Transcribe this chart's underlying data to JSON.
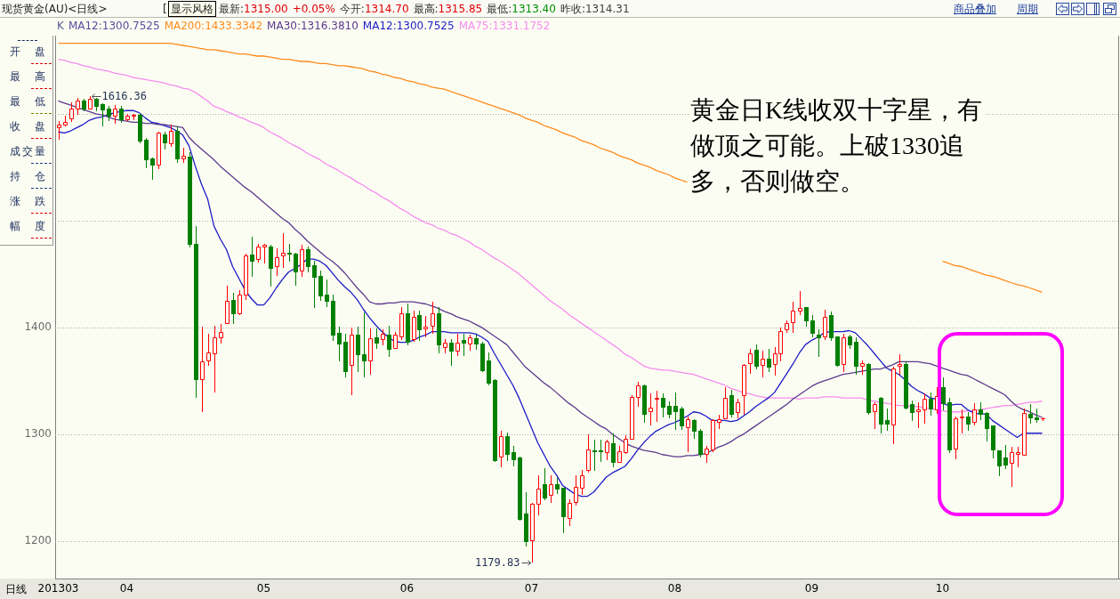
{
  "chart_data": {
    "type": "candlestick",
    "title": "现货黄金(AU)<日线>",
    "categories": [
      "201303",
      null,
      null,
      null,
      null,
      null,
      null,
      null,
      null,
      null,
      null,
      "04",
      null,
      null,
      null,
      null,
      null,
      null,
      null,
      null,
      null,
      null,
      null,
      null,
      null,
      null,
      null,
      null,
      null,
      null,
      null,
      null,
      null,
      "05",
      null,
      null,
      null,
      null,
      null,
      null,
      null,
      null,
      null,
      null,
      null,
      null,
      null,
      null,
      null,
      null,
      null,
      null,
      null,
      null,
      null,
      null,
      "06",
      null,
      null,
      null,
      null,
      null,
      null,
      null,
      null,
      null,
      null,
      null,
      null,
      null,
      null,
      null,
      null,
      null,
      null,
      null,
      "07",
      null,
      null,
      null,
      null,
      null,
      null,
      null,
      null,
      null,
      null,
      null,
      null,
      null,
      null,
      null,
      null,
      null,
      null,
      null,
      null,
      null,
      null,
      "08",
      null,
      null,
      null,
      null,
      null,
      null,
      null,
      null,
      null,
      null,
      null,
      null,
      null,
      null,
      null,
      null,
      null,
      null,
      null,
      null,
      null,
      "09",
      null,
      null,
      null,
      null,
      null,
      null,
      null,
      null,
      null,
      null,
      null,
      null,
      null,
      null,
      null,
      null,
      null,
      null,
      null,
      null,
      "10",
      null,
      null,
      null,
      null,
      null,
      null,
      null,
      null,
      null,
      null,
      null,
      null,
      null,
      null,
      null,
      null
    ],
    "ohlc": [
      [
        1587,
        1593,
        1576,
        1590
      ],
      [
        1590,
        1598,
        1588,
        1592
      ],
      [
        1596,
        1611,
        1592,
        1605
      ],
      [
        1605,
        1615,
        1599,
        1612
      ],
      [
        1612,
        1614,
        1603,
        1605
      ],
      [
        1605,
        1616.36,
        1604,
        1614
      ],
      [
        1614,
        1615,
        1603,
        1607
      ],
      [
        1609,
        1610,
        1589,
        1604
      ],
      [
        1605,
        1607,
        1594,
        1598
      ],
      [
        1598,
        1608,
        1591,
        1605
      ],
      [
        1605,
        1607,
        1592,
        1595
      ],
      [
        1595,
        1600,
        1593,
        1598
      ],
      [
        1598,
        1600,
        1594,
        1599
      ],
      [
        1599,
        1601,
        1573,
        1575
      ],
      [
        1576,
        1577,
        1550,
        1557
      ],
      [
        1558,
        1559,
        1539,
        1552
      ],
      [
        1552,
        1583,
        1548,
        1582
      ],
      [
        1581,
        1583,
        1567,
        1573
      ],
      [
        1572,
        1590,
        1569,
        1584
      ],
      [
        1584,
        1588,
        1555,
        1558
      ],
      [
        1558,
        1568,
        1554,
        1561
      ],
      [
        1560,
        1564,
        1476,
        1478
      ],
      [
        1478,
        1495,
        1335,
        1352
      ],
      [
        1352,
        1401,
        1321,
        1368
      ],
      [
        1369,
        1394,
        1364,
        1377
      ],
      [
        1376,
        1402,
        1339,
        1391
      ],
      [
        1391,
        1403,
        1385,
        1396
      ],
      [
        1404,
        1439,
        1403,
        1425
      ],
      [
        1426,
        1432,
        1404,
        1413
      ],
      [
        1413,
        1435,
        1412,
        1431
      ],
      [
        1431,
        1469,
        1426,
        1467
      ],
      [
        1468,
        1485,
        1448,
        1462
      ],
      [
        1464,
        1478,
        1461,
        1476
      ],
      [
        1476,
        1478,
        1460,
        1477
      ],
      [
        1476,
        1477,
        1439,
        1456
      ],
      [
        1457,
        1474,
        1448,
        1466
      ],
      [
        1467,
        1488,
        1456,
        1470
      ],
      [
        1470,
        1478,
        1462,
        1469
      ],
      [
        1469,
        1470,
        1440,
        1452
      ],
      [
        1453,
        1477,
        1447,
        1473
      ],
      [
        1473,
        1476,
        1452,
        1457
      ],
      [
        1458,
        1462,
        1419,
        1447
      ],
      [
        1448,
        1453,
        1426,
        1430
      ],
      [
        1431,
        1445,
        1420,
        1425
      ],
      [
        1425,
        1431,
        1388,
        1393
      ],
      [
        1395,
        1401,
        1369,
        1385
      ],
      [
        1387,
        1394,
        1354,
        1359
      ],
      [
        1365,
        1400,
        1337,
        1393
      ],
      [
        1393,
        1401,
        1359,
        1375
      ],
      [
        1375,
        1414,
        1354,
        1369
      ],
      [
        1369,
        1399,
        1356,
        1390
      ],
      [
        1391,
        1399,
        1381,
        1386
      ],
      [
        1389,
        1398,
        1383,
        1394
      ],
      [
        1393,
        1402,
        1373,
        1380
      ],
      [
        1381,
        1396,
        1380,
        1393
      ],
      [
        1392,
        1419,
        1388,
        1413
      ],
      [
        1413,
        1422,
        1384,
        1387
      ],
      [
        1389,
        1416,
        1387,
        1410
      ],
      [
        1412,
        1416,
        1388,
        1398
      ],
      [
        1399,
        1411,
        1391,
        1401
      ],
      [
        1402,
        1424,
        1394,
        1413
      ],
      [
        1413,
        1419,
        1377,
        1384
      ],
      [
        1382,
        1389,
        1376,
        1386
      ],
      [
        1386,
        1389,
        1365,
        1378
      ],
      [
        1378,
        1394,
        1373,
        1386
      ],
      [
        1388,
        1394,
        1374,
        1386
      ],
      [
        1385,
        1393,
        1378,
        1391
      ],
      [
        1390,
        1393,
        1380,
        1385
      ],
      [
        1385,
        1387,
        1359,
        1360
      ],
      [
        1369,
        1377,
        1347,
        1348
      ],
      [
        1351,
        1352,
        1275,
        1276
      ],
      [
        1279,
        1303,
        1269,
        1298
      ],
      [
        1298,
        1302,
        1276,
        1282
      ],
      [
        1283,
        1289,
        1271,
        1277
      ],
      [
        1278,
        1279,
        1220,
        1221
      ],
      [
        1226,
        1246,
        1196,
        1200
      ],
      [
        1201,
        1236,
        1179.83,
        1235
      ],
      [
        1235,
        1262,
        1224,
        1249
      ],
      [
        1253,
        1268,
        1239,
        1241
      ],
      [
        1243,
        1262,
        1236,
        1253
      ],
      [
        1253,
        1259,
        1245,
        1249
      ],
      [
        1250,
        1250,
        1208,
        1223
      ],
      [
        1222,
        1239,
        1214,
        1236
      ],
      [
        1237,
        1262,
        1233,
        1251
      ],
      [
        1250,
        1267,
        1243,
        1262
      ],
      [
        1267,
        1300,
        1264,
        1286
      ],
      [
        1285,
        1295,
        1267,
        1284
      ],
      [
        1285,
        1295,
        1275,
        1284
      ],
      [
        1283,
        1295,
        1276,
        1293
      ],
      [
        1292,
        1301,
        1270,
        1274
      ],
      [
        1274,
        1289,
        1273,
        1284
      ],
      [
        1283,
        1299,
        1282,
        1296
      ],
      [
        1296,
        1337,
        1295,
        1335
      ],
      [
        1335,
        1349,
        1326,
        1346
      ],
      [
        1346,
        1347,
        1312,
        1319
      ],
      [
        1322,
        1338,
        1308,
        1325
      ],
      [
        1333,
        1341,
        1312,
        1334
      ],
      [
        1334,
        1338,
        1317,
        1326
      ],
      [
        1327,
        1331,
        1316,
        1319
      ],
      [
        1327,
        1339,
        1305,
        1322
      ],
      [
        1324,
        1326,
        1305,
        1308
      ],
      [
        1307,
        1317,
        1283,
        1314
      ],
      [
        1313,
        1314,
        1297,
        1303
      ],
      [
        1303,
        1305,
        1279,
        1282
      ],
      [
        1282,
        1289,
        1273,
        1287
      ],
      [
        1286,
        1314,
        1283,
        1313
      ],
      [
        1312,
        1318,
        1305,
        1314
      ],
      [
        1315,
        1344,
        1314,
        1334
      ],
      [
        1337,
        1342,
        1317,
        1319
      ],
      [
        1321,
        1333,
        1315,
        1330
      ],
      [
        1337,
        1366,
        1318,
        1365
      ],
      [
        1367,
        1380,
        1357,
        1376
      ],
      [
        1379,
        1384,
        1362,
        1364
      ],
      [
        1365,
        1378,
        1353,
        1371
      ],
      [
        1371,
        1380,
        1359,
        1363
      ],
      [
        1366,
        1382,
        1355,
        1376
      ],
      [
        1376,
        1400,
        1368,
        1397
      ],
      [
        1398,
        1407,
        1395,
        1404
      ],
      [
        1405,
        1424,
        1395,
        1416
      ],
      [
        1416,
        1434,
        1412,
        1418
      ],
      [
        1419,
        1419,
        1402,
        1407
      ],
      [
        1407,
        1412,
        1392,
        1395
      ],
      [
        1393,
        1398,
        1373,
        1391
      ],
      [
        1392,
        1417,
        1388,
        1410
      ],
      [
        1412,
        1415,
        1388,
        1391
      ],
      [
        1392,
        1392,
        1364,
        1365
      ],
      [
        1366,
        1394,
        1358,
        1391
      ],
      [
        1392,
        1393,
        1381,
        1384
      ],
      [
        1387,
        1391,
        1357,
        1364
      ],
      [
        1364,
        1369,
        1356,
        1367
      ],
      [
        1366,
        1367,
        1319,
        1321
      ],
      [
        1322,
        1330,
        1305,
        1328
      ],
      [
        1334,
        1335,
        1302,
        1310
      ],
      [
        1313,
        1324,
        1304,
        1310
      ],
      [
        1309,
        1363,
        1291,
        1362
      ],
      [
        1364,
        1375,
        1356,
        1366
      ],
      [
        1366,
        1368,
        1324,
        1325
      ],
      [
        1328,
        1332,
        1313,
        1321
      ],
      [
        1322,
        1330,
        1306,
        1323
      ],
      [
        1323,
        1338,
        1310,
        1333
      ],
      [
        1333,
        1339,
        1318,
        1324
      ],
      [
        1323,
        1344,
        1319,
        1336
      ],
      [
        1344,
        1353,
        1323,
        1329
      ],
      [
        1330,
        1334,
        1283,
        1286
      ],
      [
        1287,
        1317,
        1277,
        1315
      ],
      [
        1316,
        1323,
        1301,
        1317
      ],
      [
        1317,
        1321,
        1304,
        1310
      ],
      [
        1312,
        1329,
        1308,
        1323
      ],
      [
        1323,
        1330,
        1314,
        1319
      ],
      [
        1320,
        1321,
        1294,
        1306
      ],
      [
        1308,
        1308,
        1278,
        1286
      ],
      [
        1285,
        1285,
        1262,
        1271
      ],
      [
        1278,
        1290,
        1268,
        1272
      ],
      [
        1273,
        1288,
        1251,
        1283
      ],
      [
        1282,
        1288,
        1269,
        1283
      ],
      [
        1281,
        1324,
        1280,
        1320
      ],
      [
        1319,
        1328,
        1311,
        1316
      ],
      [
        1316,
        1324,
        1312,
        1314.31
      ],
      [
        1314.7,
        1315.85,
        1313.4,
        1315
      ]
    ],
    "series": [
      {
        "name": "MA200:1433.3342",
        "type": "line",
        "color": "#ff8a1c",
        "values": [
          1666,
          1666,
          1666,
          1666,
          1666,
          1666,
          1666,
          1666,
          1666,
          1666,
          1666,
          1666,
          1666,
          1666,
          1666,
          1666,
          1666,
          1666,
          1666,
          1665,
          1664,
          1663,
          1662,
          1661,
          1660,
          1660,
          1659,
          1658,
          1657,
          1656,
          1656,
          1655,
          1654,
          1654,
          1653,
          1652,
          1651,
          1651,
          1650,
          1649,
          1649,
          1648,
          1647,
          1647,
          1646,
          1645,
          1645,
          1644,
          1643,
          1642,
          1640,
          1639,
          1637,
          1636,
          1634,
          1633,
          1631,
          1630,
          1628,
          1627,
          1625,
          1624,
          1623,
          1621,
          1619,
          1617,
          1615,
          1613,
          1611,
          1609,
          1607,
          1605,
          1603,
          1601,
          1599,
          1596,
          1594,
          1592,
          1589,
          1587,
          1585,
          1582,
          1580,
          1578,
          1575,
          1573,
          1571,
          1568,
          1566,
          1564,
          1561,
          1559,
          1557,
          1554,
          1552,
          1550,
          1547,
          1545,
          1543,
          1540,
          1538,
          1536,
          null,
          null,
          null,
          null,
          null,
          null,
          null,
          null,
          null,
          null,
          null,
          null,
          null,
          null,
          null,
          null,
          null,
          null,
          null,
          null,
          null,
          null,
          null,
          null,
          null,
          null,
          null,
          null,
          null,
          null,
          null,
          null,
          null,
          null,
          null,
          null,
          null,
          null,
          null,
          null,
          1462,
          1460,
          1458,
          1457,
          1455,
          1453,
          1451,
          1449,
          1448,
          1446,
          1444,
          1442,
          1440,
          1439,
          1437,
          1435,
          1433
        ]
      },
      {
        "name": "MA30:1316.3810",
        "type": "line",
        "color": "#5a3a8e",
        "values": [
          1612,
          1610,
          1608,
          1606,
          1604,
          1602,
          1600,
          1599,
          1597,
          1595,
          1594,
          1593,
          1592,
          1592,
          1591,
          1591,
          1590,
          1590,
          1589,
          1588,
          1587,
          1578,
          1572,
          1567,
          1562,
          1557,
          1551,
          1546,
          1541,
          1536,
          1531,
          1527,
          1522,
          1517,
          1512,
          1507,
          1502,
          1498,
          1492,
          1487,
          1481,
          1476,
          1471,
          1466,
          1462,
          1457,
          1451,
          1444,
          1437,
          1431,
          1424,
          1422,
          1422,
          1423,
          1423,
          1424,
          1424,
          1424,
          1423,
          1422,
          1420,
          1418,
          1415,
          1413,
          1410,
          1408,
          1406,
          1403,
          1400,
          1396,
          1392,
          1388,
          1384,
          1377,
          1370,
          1363,
          1358,
          1353,
          1348,
          1344,
          1339,
          1334,
          1329,
          1325,
          1320,
          1316,
          1312,
          1308,
          1305,
          1300,
          1296,
          1292,
          1289,
          1287,
          1285,
          1284,
          1283,
          1281,
          1280,
          1279,
          1279,
          1280,
          1280,
          1281,
          1282,
          1285,
          1288,
          1290,
          1293,
          1297,
          1300,
          1304,
          1308,
          1312,
          1316,
          1320,
          1324,
          1328,
          1333,
          1337,
          1341,
          1345,
          1348,
          1350,
          1352,
          1354,
          1356,
          1357,
          1358,
          1359,
          1360,
          1361,
          1361,
          1363,
          1365,
          1368,
          1368,
          1368,
          1368,
          1367,
          1366,
          1364,
          1362,
          1360,
          1358,
          1356,
          1355,
          1352,
          1349,
          1346,
          1343,
          1340,
          1337,
          1331,
          1326,
          1323,
          1321,
          1318,
          1316
        ]
      },
      {
        "name": "MA12:1300.7525",
        "type": "line",
        "color": "#1c1cc8",
        "values": [
          1583,
          1582,
          1584,
          1587,
          1590,
          1594,
          1596,
          1597,
          1599,
          1601,
          1602,
          1603,
          1603,
          1601,
          1596,
          1592,
          1591,
          1589,
          1587,
          1584,
          1580,
          1570,
          1551,
          1534,
          1520,
          1495,
          1483,
          1473,
          1457,
          1446,
          1435,
          1427,
          1421,
          1421,
          1428,
          1437,
          1445,
          1452,
          1455,
          1459,
          1464,
          1464,
          1462,
          1458,
          1451,
          1444,
          1438,
          1433,
          1426,
          1417,
          1409,
          1402,
          1396,
          1391,
          1387,
          1386,
          1386,
          1388,
          1391,
          1393,
          1396,
          1396,
          1396,
          1395,
          1395,
          1395,
          1395,
          1394,
          1391,
          1387,
          1376,
          1366,
          1356,
          1346,
          1334,
          1320,
          1306,
          1292,
          1281,
          1270,
          1262,
          1252,
          1248,
          1244,
          1242,
          1242,
          1246,
          1253,
          1260,
          1264,
          1267,
          1270,
          1277,
          1285,
          1292,
          1298,
          1303,
          1306,
          1309,
          1311,
          1314,
          1317,
          1321,
          1320,
          1317,
          1313,
          1313,
          1313,
          1312,
          1313,
          1317,
          1321,
          1326,
          1330,
          1334,
          1339,
          1348,
          1357,
          1366,
          1376,
          1384,
          1388,
          1391,
          1395,
          1396,
          1396,
          1396,
          1397,
          1395,
          1389,
          1383,
          1376,
          1369,
          1362,
          1359,
          1356,
          1351,
          1345,
          1341,
          1338,
          1334,
          1333,
          1329,
          1327,
          1328,
          1328,
          1323,
          1320,
          1319,
          1319,
          1313,
          1309,
          1305,
          1301,
          1297,
          1301,
          1301,
          1301,
          1301
        ]
      },
      {
        "name": "MA75:1331.1752",
        "type": "line",
        "color": "#f58cf0",
        "values": [
          1651,
          1650,
          1648,
          1647,
          1645,
          1644,
          1642,
          1641,
          1640,
          1638,
          1637,
          1636,
          1634,
          1633,
          1632,
          1631,
          1630,
          1629,
          1627,
          1626,
          1624,
          1623,
          1620,
          1616,
          1612,
          1607,
          1605,
          1602,
          1600,
          1597,
          1595,
          1592,
          1590,
          1587,
          1583,
          1580,
          1577,
          1573,
          1570,
          1567,
          1563,
          1560,
          1557,
          1553,
          1550,
          1547,
          1543,
          1540,
          1536,
          1533,
          1529,
          1526,
          1522,
          1519,
          1515,
          1511,
          1508,
          1504,
          1501,
          1498,
          1496,
          1493,
          1491,
          1488,
          1486,
          1483,
          1480,
          1476,
          1473,
          1469,
          1465,
          1462,
          1458,
          1454,
          1450,
          1445,
          1440,
          1435,
          1430,
          1425,
          1421,
          1417,
          1412,
          1408,
          1404,
          1400,
          1396,
          1392,
          1388,
          1384,
          1380,
          1375,
          1372,
          1368,
          1364,
          1362,
          1361,
          1360,
          1360,
          1359,
          1358,
          1357,
          1356,
          1354,
          1352,
          1350,
          1348,
          1346,
          1343,
          1341,
          1339,
          1338,
          1336,
          1335,
          1334,
          1334,
          1334,
          1334,
          1334,
          1333,
          1334,
          1334,
          1334,
          1335,
          1335,
          1335,
          1334,
          1334,
          1334,
          1334,
          1332,
          1331,
          1330,
          1329,
          1328,
          1327,
          1327,
          1326,
          1326,
          1325,
          1324,
          1323,
          1322,
          1321,
          1321,
          1321,
          1322,
          1322,
          1323,
          1324,
          1325,
          1326,
          1327,
          1327,
          1328,
          1329,
          1330,
          1330,
          1331
        ]
      }
    ],
    "ylim": [
      1165,
      1673
    ],
    "yticks": [
      1200,
      1300,
      1400,
      {
        "value": 1500,
        "label": null
      },
      {
        "value": 1600,
        "label": null
      }
    ],
    "grid": "y",
    "legend": "top left",
    "annotations": [
      "[",
      "显示风格",
      "最新:1315.00",
      "+0.05%",
      "今开:1314.70",
      "最高:1315.85",
      "最低:1313.40",
      "昨收:1314.31",
      "商品叠加",
      "周期",
      "K",
      "MA12:1300.7525",
      "开盘",
      "最高",
      "最低",
      "收盘",
      "成交量",
      "持仓",
      "涨跌",
      "幅度",
      "日线",
      "1616.36",
      "1179.83",
      "黄金日K线收双十字星，有做顶之可能。上破1330追多，否则做空。"
    ]
  }
}
